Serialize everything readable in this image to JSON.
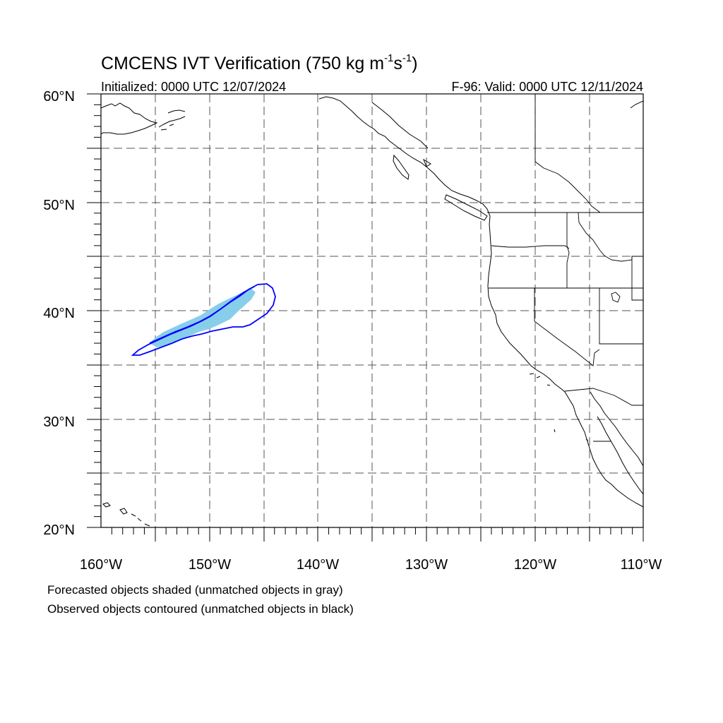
{
  "figure": {
    "title": "CMCENS IVT Verification (750 kg m",
    "title_exp1": "-1",
    "title_mid": "s",
    "title_exp2": "-1",
    "title_end": ")",
    "initialized": "Initialized: 0000 UTC 12/07/2024",
    "valid": "F-96: Valid: 0000 UTC 12/11/2024"
  },
  "axes": {
    "lat_labels": [
      "60°N",
      "50°N",
      "40°N",
      "30°N",
      "20°N"
    ],
    "lon_labels": [
      "160°W",
      "150°W",
      "140°W",
      "130°W",
      "120°W",
      "110°W"
    ],
    "lat_range": [
      20,
      60
    ],
    "lon_range": [
      -160,
      -110
    ],
    "grid": "dashed, every 5 degrees"
  },
  "legend": {
    "line1": "Forecasted objects shaded (unmatched objects in gray)",
    "line2": "Observed objects contoured (unmatched objects in black)"
  },
  "objects": {
    "forecast_color": "#87CEEB",
    "observed_color": "#0000FF",
    "coast_color": "#000000"
  }
}
